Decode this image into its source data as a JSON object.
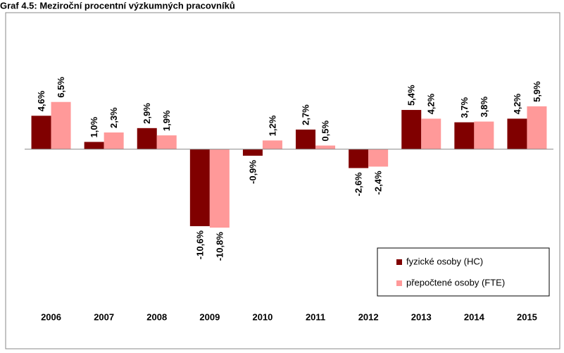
{
  "chart_data": {
    "type": "bar",
    "title": "Graf 4.5: Meziroční procentní výzkumných pracovníků",
    "categories": [
      "2006",
      "2007",
      "2008",
      "2009",
      "2010",
      "2011",
      "2012",
      "2013",
      "2014",
      "2015"
    ],
    "series": [
      {
        "name": "fyzické osoby (HC)",
        "color": "#800000",
        "values": [
          4.6,
          1.0,
          2.9,
          -10.6,
          -0.9,
          2.7,
          -2.6,
          5.4,
          3.7,
          4.2
        ],
        "value_labels": [
          "4,6%",
          "1,0%",
          "2,9%",
          "-10,6%",
          "-0,9%",
          "2,7%",
          "-2,6%",
          "5,4%",
          "3,7%",
          "4,2%"
        ]
      },
      {
        "name": "přepočtené osoby (FTE)",
        "color": "#ff9999",
        "values": [
          6.5,
          2.3,
          1.9,
          -10.8,
          1.2,
          0.5,
          -2.4,
          4.2,
          3.8,
          5.9
        ],
        "value_labels": [
          "6,5%",
          "2,3%",
          "1,9%",
          "-10,8%",
          "1,2%",
          "0,5%",
          "-2,4%",
          "4,2%",
          "3,8%",
          "5,9%"
        ]
      }
    ],
    "ylim": [
      -17,
      12
    ],
    "legend": "bottom-right"
  }
}
